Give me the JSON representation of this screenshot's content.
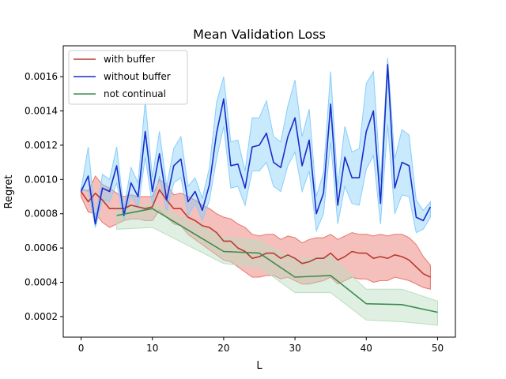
{
  "chart_data": {
    "type": "line",
    "title": "Mean Validation Loss",
    "xlabel": "L",
    "ylabel": "Regret",
    "xlim": [
      -2.5,
      52.5
    ],
    "ylim": [
      8e-05,
      0.00178
    ],
    "xticks": [
      0,
      10,
      20,
      30,
      40,
      50
    ],
    "xtick_labels": [
      "0",
      "10",
      "20",
      "30",
      "40",
      "50"
    ],
    "yticks": [
      0.0002,
      0.0004,
      0.0006,
      0.0008,
      0.001,
      0.0012,
      0.0014,
      0.0016
    ],
    "ytick_labels": [
      "0.0002",
      "0.0004",
      "0.0006",
      "0.0008",
      "0.0010",
      "0.0012",
      "0.0014",
      "0.0016"
    ],
    "grid": false,
    "legend_position": "top-left",
    "series": [
      {
        "name": "with buffer",
        "color": "#b83b31",
        "fill": "#e8736b",
        "x": [
          0,
          1,
          2,
          3,
          4,
          5,
          6,
          7,
          8,
          9,
          10,
          11,
          12,
          13,
          14,
          15,
          16,
          17,
          18,
          19,
          20,
          21,
          22,
          23,
          24,
          25,
          26,
          27,
          28,
          29,
          30,
          31,
          32,
          33,
          34,
          35,
          36,
          37,
          38,
          39,
          40,
          41,
          42,
          43,
          44,
          45,
          46,
          47,
          48,
          49
        ],
        "y": [
          0.00093,
          0.00087,
          0.00092,
          0.00088,
          0.00083,
          0.00083,
          0.00083,
          0.00085,
          0.00084,
          0.00083,
          0.00084,
          0.00094,
          0.00088,
          0.00083,
          0.00083,
          0.00078,
          0.00076,
          0.00073,
          0.00072,
          0.00069,
          0.00064,
          0.00064,
          0.0006,
          0.00058,
          0.00054,
          0.00055,
          0.00057,
          0.00057,
          0.00054,
          0.00056,
          0.00054,
          0.00051,
          0.00052,
          0.00054,
          0.00054,
          0.00057,
          0.00053,
          0.00055,
          0.00058,
          0.00057,
          0.00057,
          0.00054,
          0.00055,
          0.00054,
          0.00056,
          0.00055,
          0.00053,
          0.00049,
          0.00045,
          0.00043
        ],
        "lower": [
          0.0009,
          0.00081,
          0.0008,
          0.00075,
          0.00072,
          0.00074,
          0.00076,
          0.00077,
          0.00077,
          0.00076,
          0.00076,
          0.00082,
          0.00078,
          0.00074,
          0.00073,
          0.00068,
          0.00065,
          0.00062,
          0.00059,
          0.00056,
          0.00053,
          0.00052,
          0.00049,
          0.00046,
          0.00043,
          0.00043,
          0.00044,
          0.00044,
          0.00042,
          0.00043,
          0.00041,
          0.00039,
          0.00039,
          0.0004,
          0.00041,
          0.00043,
          0.00039,
          0.00041,
          0.00043,
          0.00042,
          0.00042,
          0.0004,
          0.00041,
          0.00041,
          0.00043,
          0.00042,
          0.00041,
          0.00039,
          0.00037,
          0.00036
        ],
        "upper": [
          0.00095,
          0.00093,
          0.00102,
          0.00097,
          0.00095,
          0.00092,
          0.0009,
          0.00091,
          0.0009,
          0.0009,
          0.0009,
          0.001,
          0.00097,
          0.00091,
          0.00092,
          0.0009,
          0.00088,
          0.00085,
          0.00083,
          0.0008,
          0.00078,
          0.00077,
          0.00074,
          0.00072,
          0.00068,
          0.00067,
          0.00068,
          0.00068,
          0.00065,
          0.00067,
          0.00066,
          0.00063,
          0.00065,
          0.00066,
          0.00066,
          0.00068,
          0.00065,
          0.00067,
          0.00069,
          0.00068,
          0.00068,
          0.00067,
          0.00068,
          0.00067,
          0.00068,
          0.00068,
          0.00066,
          0.00062,
          0.00055,
          0.0005
        ]
      },
      {
        "name": "without buffer",
        "color": "#1a2ccc",
        "fill": "#87cefa",
        "x": [
          0,
          1,
          2,
          3,
          4,
          5,
          6,
          7,
          8,
          9,
          10,
          11,
          12,
          13,
          14,
          15,
          16,
          17,
          18,
          19,
          20,
          21,
          22,
          23,
          24,
          25,
          26,
          27,
          28,
          29,
          30,
          31,
          32,
          33,
          34,
          35,
          36,
          37,
          38,
          39,
          40,
          41,
          42,
          43,
          44,
          45,
          46,
          47,
          48,
          49
        ],
        "y": [
          0.00093,
          0.00102,
          0.00074,
          0.00095,
          0.00093,
          0.00108,
          0.00079,
          0.00098,
          0.0009,
          0.00128,
          0.00093,
          0.00115,
          0.00088,
          0.00108,
          0.00112,
          0.00087,
          0.00093,
          0.00082,
          0.00097,
          0.00127,
          0.00147,
          0.00108,
          0.00109,
          0.00095,
          0.00119,
          0.0012,
          0.00127,
          0.0011,
          0.00107,
          0.00125,
          0.00136,
          0.00108,
          0.00123,
          0.0008,
          0.00092,
          0.00144,
          0.00085,
          0.00113,
          0.00101,
          0.00101,
          0.00128,
          0.0014,
          0.00086,
          0.00167,
          0.00095,
          0.0011,
          0.00108,
          0.00078,
          0.00076,
          0.00084
        ],
        "lower": [
          0.00093,
          0.00094,
          0.00072,
          0.00088,
          0.00087,
          0.00098,
          0.00076,
          0.00091,
          0.00083,
          0.00113,
          0.00085,
          0.00102,
          0.00081,
          0.00098,
          0.00101,
          0.00079,
          0.00086,
          0.00076,
          0.00088,
          0.00112,
          0.00131,
          0.00095,
          0.00096,
          0.00085,
          0.00105,
          0.00105,
          0.0011,
          0.00096,
          0.00093,
          0.00108,
          0.00116,
          0.00093,
          0.00105,
          0.0007,
          0.0008,
          0.00122,
          0.00074,
          0.00096,
          0.00086,
          0.00085,
          0.00106,
          0.00114,
          0.00074,
          0.00132,
          0.0008,
          0.00091,
          0.0009,
          0.00069,
          0.00071,
          0.00078
        ],
        "upper": [
          0.00094,
          0.00119,
          0.00077,
          0.00103,
          0.001,
          0.00119,
          0.00083,
          0.00107,
          0.00098,
          0.00146,
          0.00101,
          0.00128,
          0.00096,
          0.00118,
          0.00125,
          0.00096,
          0.00101,
          0.00089,
          0.00107,
          0.00145,
          0.0016,
          0.00122,
          0.00123,
          0.00105,
          0.00136,
          0.00136,
          0.00146,
          0.00125,
          0.00122,
          0.00143,
          0.00158,
          0.00125,
          0.00141,
          0.0009,
          0.00104,
          0.00163,
          0.00096,
          0.00131,
          0.00116,
          0.00118,
          0.00156,
          0.00163,
          0.00099,
          0.00171,
          0.00112,
          0.00129,
          0.00126,
          0.00088,
          0.00082,
          0.00087
        ]
      },
      {
        "name": "not continual",
        "color": "#3c8c50",
        "fill": "#b9ddc1",
        "x": [
          5,
          10,
          20,
          25,
          30,
          35,
          40,
          45,
          50
        ],
        "y": [
          0.00079,
          0.00083,
          0.00058,
          0.00057,
          0.00043,
          0.00044,
          0.000275,
          0.00027,
          0.000225
        ],
        "lower": [
          0.00071,
          0.00072,
          0.00051,
          0.00049,
          0.00034,
          0.00034,
          0.00018,
          0.00017,
          0.00015
        ],
        "upper": [
          0.00082,
          0.00086,
          0.00066,
          0.00064,
          0.00053,
          0.00055,
          0.00036,
          0.00036,
          0.00029
        ]
      }
    ]
  }
}
